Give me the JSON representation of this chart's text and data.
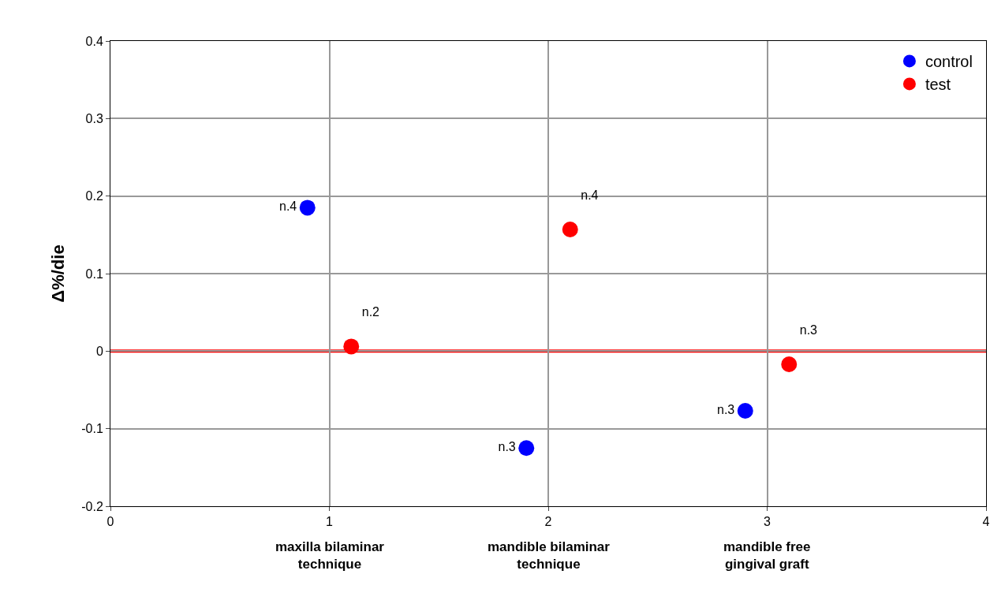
{
  "chart_data": {
    "type": "scatter",
    "ylabel": "Δ%/die",
    "xlim": [
      0,
      4
    ],
    "xticks": [
      0,
      1,
      2,
      3,
      4
    ],
    "ylim": [
      -0.2,
      0.4
    ],
    "yticks": [
      -0.2,
      -0.1,
      0,
      0.1,
      0.2,
      0.3,
      0.4
    ],
    "grid": true,
    "legend": "top right",
    "marker": "circle",
    "series": [
      {
        "name": "control",
        "color": "#0000ff",
        "x": [
          0.9,
          1.9,
          2.9
        ],
        "values": [
          0.185,
          -0.125,
          -0.077
        ],
        "value_labels": [
          "n.4",
          "n.3",
          "n.3"
        ]
      },
      {
        "name": "test",
        "color": "#ff0000",
        "x": [
          1.1,
          2.1,
          3.1
        ],
        "values": [
          0.006,
          0.157,
          -0.017
        ],
        "value_labels": [
          "n.2",
          "n.4",
          "n.3"
        ]
      }
    ],
    "ref_lines": [
      {
        "axis": "y",
        "value": 0,
        "color": "#ff0000"
      }
    ],
    "annotations": [
      "maxilla bilaminar\ntechnique",
      "mandible bilaminar\ntechnique",
      "mandible free\ngingival graft"
    ]
  }
}
